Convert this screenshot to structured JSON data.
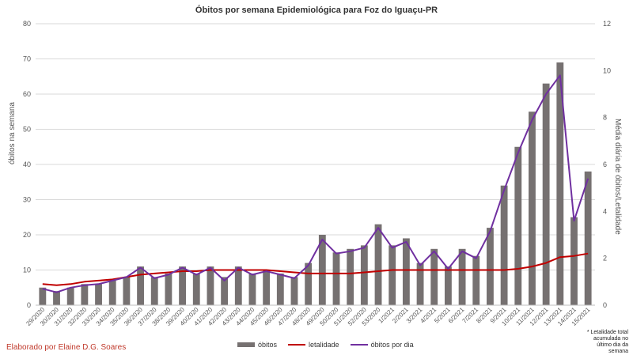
{
  "title": "Óbitos por semana Epidemiológica para Foz do Iguaçu-PR",
  "credit": "Elaborado por Elaine D.G. Soares",
  "note": "* Letalidade total acumulada no último dia da semana",
  "colors": {
    "bars": "#767171",
    "letalidade": "#c00000",
    "obitos_por_dia": "#7030a0",
    "grid": "#d9d9d9"
  },
  "chart_data": {
    "type": "bar",
    "title": "Óbitos por semana Epidemiológica para Foz do Iguaçu-PR",
    "xlabel": "",
    "ylabel": "óbitos na semana",
    "y2label": "Média diária de óbitos/Letalidade",
    "ylim": [
      0,
      80
    ],
    "y2lim": [
      0,
      12
    ],
    "yticks": [
      "0",
      "10",
      "20",
      "30",
      "40",
      "50",
      "60",
      "70",
      "80"
    ],
    "y2ticks": [
      "0",
      "2",
      "4",
      "6",
      "8",
      "10",
      "12"
    ],
    "grid": true,
    "legend_position": "bottom",
    "categories": [
      "29/2020",
      "30/2020",
      "31/2020",
      "32/2020",
      "33/2020",
      "34/2020",
      "35/2020",
      "36/2020",
      "37/2020",
      "38/2020",
      "39/2020",
      "40/2020",
      "41/2020",
      "42/2020",
      "43/2020",
      "44/2020",
      "45/2020",
      "46/2020",
      "47/2020",
      "48/2020",
      "49/2020",
      "50/2020",
      "51/2020",
      "52/2020",
      "53/2020",
      "1/2021",
      "2/2021",
      "3/2021",
      "4/2021",
      "5/2021",
      "6/2021",
      "7/2021",
      "8/2021",
      "9/2021",
      "10/2021",
      "11/2021",
      "12/2021",
      "13/2021",
      "14/2021",
      "15/2021"
    ],
    "series": [
      {
        "name": "óbitos",
        "type": "bar",
        "axis": "left",
        "values": [
          5,
          4,
          5,
          6,
          6,
          7,
          8,
          11,
          8,
          9,
          11,
          9,
          11,
          8,
          11,
          9,
          10,
          9,
          8,
          12,
          20,
          15,
          16,
          17,
          23,
          17,
          19,
          12,
          16,
          11,
          16,
          14,
          22,
          34,
          45,
          55,
          63,
          69,
          25,
          38
        ]
      },
      {
        "name": "letalidade",
        "type": "line",
        "axis": "right",
        "values": [
          0.9,
          0.85,
          0.9,
          1.0,
          1.05,
          1.1,
          1.2,
          1.3,
          1.35,
          1.4,
          1.45,
          1.45,
          1.5,
          1.5,
          1.5,
          1.5,
          1.5,
          1.45,
          1.4,
          1.35,
          1.35,
          1.35,
          1.35,
          1.4,
          1.45,
          1.5,
          1.5,
          1.5,
          1.5,
          1.5,
          1.5,
          1.5,
          1.5,
          1.5,
          1.55,
          1.65,
          1.8,
          2.05,
          2.1,
          2.2
        ]
      },
      {
        "name": "óbitos por dia",
        "type": "line",
        "axis": "right",
        "values": [
          0.7,
          0.55,
          0.75,
          0.85,
          0.9,
          1.05,
          1.2,
          1.6,
          1.15,
          1.3,
          1.6,
          1.3,
          1.6,
          1.05,
          1.6,
          1.3,
          1.45,
          1.3,
          1.15,
          1.7,
          2.8,
          2.2,
          2.3,
          2.45,
          3.3,
          2.45,
          2.7,
          1.7,
          2.3,
          1.55,
          2.3,
          2.0,
          3.15,
          4.9,
          6.5,
          7.9,
          9.0,
          9.8,
          3.6,
          5.4
        ]
      }
    ]
  }
}
